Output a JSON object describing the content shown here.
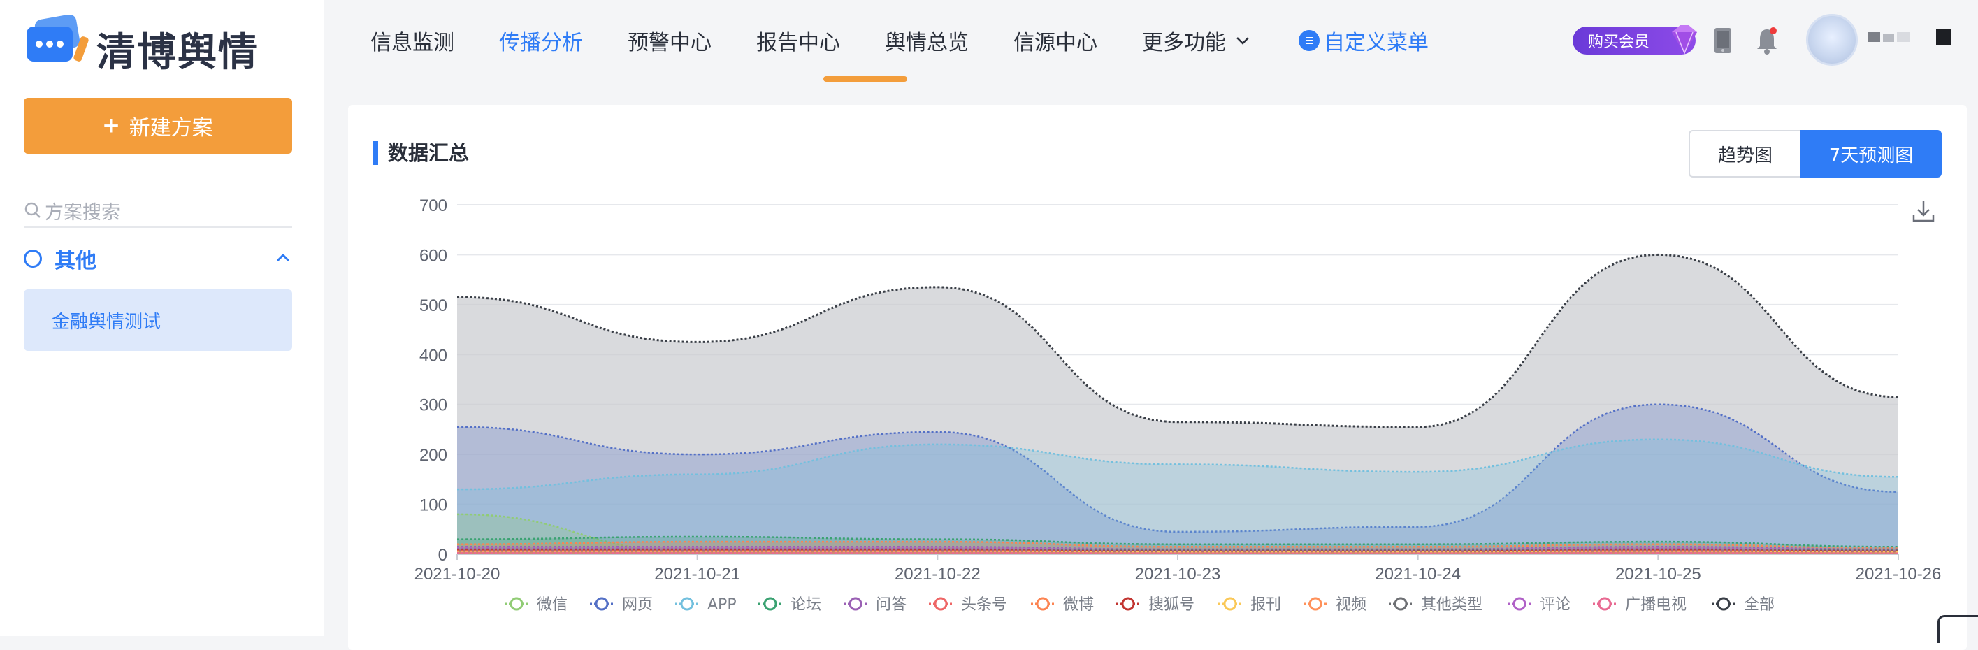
{
  "brand": {
    "name": "清博舆情"
  },
  "sidebar": {
    "new_plan_label": "新建方案",
    "search_placeholder": "方案搜索",
    "group_label": "其他",
    "items": [
      {
        "label": "金融舆情测试"
      }
    ]
  },
  "nav": {
    "items": [
      {
        "label": "信息监测"
      },
      {
        "label": "传播分析"
      },
      {
        "label": "预警中心"
      },
      {
        "label": "报告中心"
      },
      {
        "label": "舆情总览"
      },
      {
        "label": "信源中心"
      },
      {
        "label": "更多功能"
      }
    ],
    "active_index": 1,
    "custom_menu_label": "自定义菜单",
    "vip_label": "购买会员"
  },
  "card": {
    "title": "数据汇总",
    "tabs": [
      "趋势图",
      "7天预测图"
    ],
    "active_tab": 1
  },
  "colors": {
    "accent": "#2f7cf6",
    "orange": "#f39d3b"
  },
  "chart_data": {
    "type": "area",
    "x": [
      "2021-10-20",
      "2021-10-21",
      "2021-10-22",
      "2021-10-23",
      "2021-10-24",
      "2021-10-25",
      "2021-10-26"
    ],
    "ylim": [
      0,
      700
    ],
    "yticks": [
      0,
      100,
      200,
      300,
      400,
      500,
      600,
      700
    ],
    "grid": true,
    "legend_position": "bottom",
    "series": [
      {
        "name": "微信",
        "color": "#91cc75",
        "values": [
          80,
          5,
          5,
          5,
          5,
          5,
          5
        ]
      },
      {
        "name": "网页",
        "color": "#5470c6",
        "values": [
          255,
          200,
          245,
          45,
          55,
          300,
          125
        ]
      },
      {
        "name": "APP",
        "color": "#73c0de",
        "values": [
          130,
          160,
          220,
          180,
          165,
          230,
          155
        ]
      },
      {
        "name": "论坛",
        "color": "#3ba272",
        "values": [
          30,
          35,
          30,
          20,
          20,
          25,
          15
        ]
      },
      {
        "name": "问答",
        "color": "#9a60b4",
        "values": [
          15,
          15,
          15,
          10,
          10,
          15,
          10
        ]
      },
      {
        "name": "头条号",
        "color": "#ee6666",
        "values": [
          10,
          12,
          12,
          8,
          8,
          12,
          8
        ]
      },
      {
        "name": "微博",
        "color": "#fc8452",
        "values": [
          20,
          25,
          25,
          15,
          15,
          20,
          12
        ]
      },
      {
        "name": "搜狐号",
        "color": "#c23531",
        "values": [
          8,
          8,
          8,
          6,
          6,
          8,
          6
        ]
      },
      {
        "name": "报刊",
        "color": "#fac858",
        "values": [
          5,
          5,
          5,
          4,
          4,
          5,
          4
        ]
      },
      {
        "name": "视频",
        "color": "#ff915a",
        "values": [
          6,
          6,
          6,
          5,
          5,
          6,
          5
        ]
      },
      {
        "name": "其他类型",
        "color": "#6e7074",
        "values": [
          10,
          10,
          10,
          8,
          8,
          10,
          8
        ]
      },
      {
        "name": "评论",
        "color": "#b061c7",
        "values": [
          12,
          12,
          12,
          9,
          9,
          12,
          9
        ]
      },
      {
        "name": "广播电视",
        "color": "#e86a92",
        "values": [
          3,
          3,
          3,
          2,
          2,
          3,
          2
        ]
      },
      {
        "name": "全部",
        "color": "#3a3f47",
        "values": [
          515,
          425,
          535,
          265,
          255,
          600,
          315
        ]
      }
    ]
  }
}
